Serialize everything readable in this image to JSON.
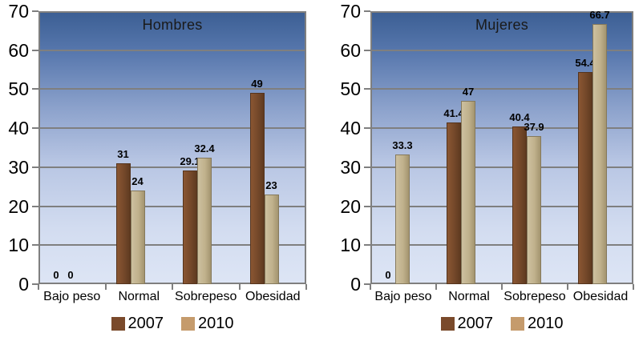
{
  "page": {
    "background": "#ffffff"
  },
  "chart_data": [
    {
      "type": "bar",
      "title": "Hombres",
      "categories": [
        "Bajo peso",
        "Normal",
        "Sobrepeso",
        "Obesidad"
      ],
      "series": [
        {
          "name": "2007",
          "color": "#7a4a2b",
          "values": [
            0,
            31,
            29.1,
            49
          ]
        },
        {
          "name": "2010",
          "color": "#c59b6c",
          "values": [
            0,
            24,
            32.4,
            23
          ]
        }
      ],
      "ylim": [
        0,
        70
      ],
      "yticks": [
        0,
        10,
        20,
        30,
        40,
        50,
        60,
        70
      ],
      "grid": true,
      "legend_position": "bottom",
      "data_labels": true
    },
    {
      "type": "bar",
      "title": "Mujeres",
      "categories": [
        "Bajo peso",
        "Normal",
        "Sobrepeso",
        "Obesidad"
      ],
      "series": [
        {
          "name": "2007",
          "color": "#7a4a2b",
          "values": [
            0,
            41.4,
            40.4,
            54.4
          ]
        },
        {
          "name": "2010",
          "color": "#c59b6c",
          "values": [
            33.3,
            47,
            37.9,
            66.7
          ]
        }
      ],
      "ylim": [
        0,
        70
      ],
      "yticks": [
        0,
        10,
        20,
        30,
        40,
        50,
        60,
        70
      ],
      "grid": true,
      "legend_position": "bottom",
      "data_labels": true
    }
  ],
  "style": {
    "plot_gradient_top": "#3c5f94",
    "plot_gradient_bottom": "#dde5f5",
    "gridline_color": "#7f7f7f",
    "series_2007_color": "#7a4a2b",
    "series_2010_color": "#c59b6c",
    "label_color": "#000000"
  }
}
